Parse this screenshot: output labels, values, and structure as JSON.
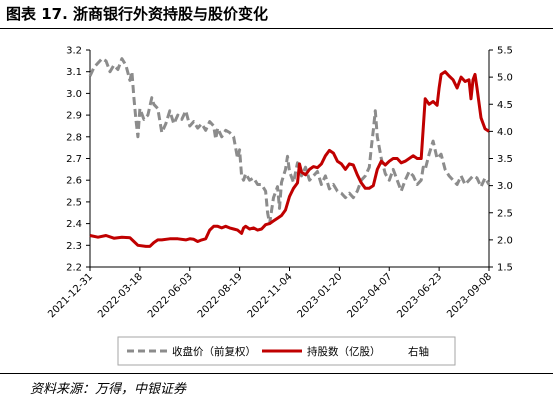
{
  "figure": {
    "title": "图表 17. 浙商银行外资持股与股价变化",
    "source": "资料来源：万得，中银证券"
  },
  "chart_data": {
    "type": "line",
    "x_tick_labels": [
      "2021-12-31",
      "2022-03-18",
      "2022-06-03",
      "2022-08-19",
      "2022-11-04",
      "2023-01-20",
      "2023-04-07",
      "2023-06-23",
      "2023-09-08"
    ],
    "left_axis": {
      "ylim": [
        2.2,
        3.2
      ],
      "ticks": [
        "2.2",
        "2.3",
        "2.4",
        "2.5",
        "2.6",
        "2.7",
        "2.8",
        "2.9",
        "3.0",
        "3.1",
        "3.2"
      ]
    },
    "right_axis": {
      "ylim": [
        1.5,
        5.5
      ],
      "ticks": [
        "1.5",
        "2.0",
        "2.5",
        "3.0",
        "3.5",
        "4.0",
        "4.5",
        "5.0",
        "5.5"
      ]
    },
    "grid": false,
    "legend_position": "bottom",
    "legend_note": "右轴",
    "colors": {
      "price": "#8c8c8c",
      "holdings": "#c00000"
    },
    "series": [
      {
        "name": "收盘价（前复权）",
        "axis": "left",
        "style": "dashed",
        "points": [
          [
            0,
            3.08
          ],
          [
            0.01,
            3.12
          ],
          [
            0.02,
            3.14
          ],
          [
            0.03,
            3.16
          ],
          [
            0.04,
            3.15
          ],
          [
            0.05,
            3.1
          ],
          [
            0.06,
            3.13
          ],
          [
            0.07,
            3.11
          ],
          [
            0.08,
            3.16
          ],
          [
            0.09,
            3.13
          ],
          [
            0.1,
            3.06
          ],
          [
            0.105,
            3.1
          ],
          [
            0.11,
            2.98
          ],
          [
            0.115,
            2.88
          ],
          [
            0.12,
            2.8
          ],
          [
            0.125,
            2.93
          ],
          [
            0.135,
            2.88
          ],
          [
            0.145,
            2.9
          ],
          [
            0.155,
            2.98
          ],
          [
            0.16,
            2.95
          ],
          [
            0.17,
            2.93
          ],
          [
            0.18,
            2.82
          ],
          [
            0.19,
            2.86
          ],
          [
            0.2,
            2.92
          ],
          [
            0.21,
            2.86
          ],
          [
            0.22,
            2.9
          ],
          [
            0.23,
            2.88
          ],
          [
            0.24,
            2.92
          ],
          [
            0.25,
            2.85
          ],
          [
            0.26,
            2.87
          ],
          [
            0.27,
            2.84
          ],
          [
            0.28,
            2.86
          ],
          [
            0.29,
            2.83
          ],
          [
            0.3,
            2.87
          ],
          [
            0.31,
            2.85
          ],
          [
            0.315,
            2.79
          ],
          [
            0.32,
            2.84
          ],
          [
            0.33,
            2.8
          ],
          [
            0.34,
            2.83
          ],
          [
            0.35,
            2.82
          ],
          [
            0.36,
            2.8
          ],
          [
            0.37,
            2.7
          ],
          [
            0.375,
            2.74
          ],
          [
            0.38,
            2.62
          ],
          [
            0.385,
            2.6
          ],
          [
            0.39,
            2.63
          ],
          [
            0.4,
            2.6
          ],
          [
            0.41,
            2.61
          ],
          [
            0.42,
            2.58
          ],
          [
            0.43,
            2.58
          ],
          [
            0.44,
            2.55
          ],
          [
            0.445,
            2.45
          ],
          [
            0.45,
            2.4
          ],
          [
            0.46,
            2.52
          ],
          [
            0.47,
            2.57
          ],
          [
            0.475,
            2.47
          ],
          [
            0.48,
            2.59
          ],
          [
            0.49,
            2.65
          ],
          [
            0.495,
            2.71
          ],
          [
            0.5,
            2.64
          ],
          [
            0.51,
            2.59
          ],
          [
            0.52,
            2.68
          ],
          [
            0.53,
            2.62
          ],
          [
            0.54,
            2.66
          ],
          [
            0.55,
            2.6
          ],
          [
            0.56,
            2.62
          ],
          [
            0.57,
            2.64
          ],
          [
            0.58,
            2.58
          ],
          [
            0.59,
            2.62
          ],
          [
            0.6,
            2.56
          ],
          [
            0.61,
            2.58
          ],
          [
            0.62,
            2.55
          ],
          [
            0.63,
            2.54
          ],
          [
            0.64,
            2.52
          ],
          [
            0.65,
            2.54
          ],
          [
            0.66,
            2.52
          ],
          [
            0.67,
            2.55
          ],
          [
            0.68,
            2.6
          ],
          [
            0.69,
            2.62
          ],
          [
            0.7,
            2.66
          ],
          [
            0.705,
            2.75
          ],
          [
            0.71,
            2.83
          ],
          [
            0.715,
            2.92
          ],
          [
            0.72,
            2.8
          ],
          [
            0.73,
            2.7
          ],
          [
            0.74,
            2.63
          ],
          [
            0.75,
            2.6
          ],
          [
            0.76,
            2.65
          ],
          [
            0.77,
            2.6
          ],
          [
            0.78,
            2.55
          ],
          [
            0.79,
            2.6
          ],
          [
            0.8,
            2.64
          ],
          [
            0.81,
            2.62
          ],
          [
            0.82,
            2.58
          ],
          [
            0.83,
            2.6
          ],
          [
            0.835,
            2.66
          ],
          [
            0.84,
            2.65
          ],
          [
            0.85,
            2.72
          ],
          [
            0.86,
            2.78
          ],
          [
            0.87,
            2.7
          ],
          [
            0.88,
            2.72
          ],
          [
            0.89,
            2.65
          ],
          [
            0.9,
            2.62
          ],
          [
            0.91,
            2.6
          ],
          [
            0.92,
            2.58
          ],
          [
            0.93,
            2.62
          ],
          [
            0.94,
            2.58
          ],
          [
            0.95,
            2.6
          ],
          [
            0.96,
            2.62
          ],
          [
            0.97,
            2.61
          ],
          [
            0.98,
            2.57
          ],
          [
            0.99,
            2.61
          ],
          [
            1.0,
            2.58
          ]
        ]
      },
      {
        "name": "持股数（亿股）",
        "axis": "right",
        "style": "solid",
        "points": [
          [
            0,
            2.08
          ],
          [
            0.02,
            2.05
          ],
          [
            0.04,
            2.08
          ],
          [
            0.06,
            2.03
          ],
          [
            0.08,
            2.05
          ],
          [
            0.1,
            2.04
          ],
          [
            0.11,
            1.97
          ],
          [
            0.12,
            1.9
          ],
          [
            0.14,
            1.88
          ],
          [
            0.15,
            1.88
          ],
          [
            0.16,
            1.95
          ],
          [
            0.17,
            2.0
          ],
          [
            0.18,
            2.0
          ],
          [
            0.2,
            2.02
          ],
          [
            0.22,
            2.02
          ],
          [
            0.24,
            2.0
          ],
          [
            0.25,
            2.02
          ],
          [
            0.26,
            2.01
          ],
          [
            0.27,
            1.97
          ],
          [
            0.28,
            2.0
          ],
          [
            0.29,
            2.02
          ],
          [
            0.3,
            2.18
          ],
          [
            0.31,
            2.25
          ],
          [
            0.32,
            2.25
          ],
          [
            0.33,
            2.22
          ],
          [
            0.34,
            2.25
          ],
          [
            0.35,
            2.22
          ],
          [
            0.36,
            2.2
          ],
          [
            0.37,
            2.18
          ],
          [
            0.38,
            2.12
          ],
          [
            0.385,
            2.22
          ],
          [
            0.39,
            2.25
          ],
          [
            0.4,
            2.2
          ],
          [
            0.41,
            2.22
          ],
          [
            0.42,
            2.18
          ],
          [
            0.43,
            2.2
          ],
          [
            0.44,
            2.28
          ],
          [
            0.45,
            2.3
          ],
          [
            0.46,
            2.35
          ],
          [
            0.47,
            2.4
          ],
          [
            0.48,
            2.45
          ],
          [
            0.49,
            2.55
          ],
          [
            0.5,
            2.8
          ],
          [
            0.51,
            2.95
          ],
          [
            0.52,
            3.05
          ],
          [
            0.525,
            3.4
          ],
          [
            0.53,
            3.25
          ],
          [
            0.54,
            3.2
          ],
          [
            0.55,
            3.3
          ],
          [
            0.56,
            3.35
          ],
          [
            0.57,
            3.33
          ],
          [
            0.58,
            3.4
          ],
          [
            0.59,
            3.55
          ],
          [
            0.6,
            3.65
          ],
          [
            0.61,
            3.6
          ],
          [
            0.62,
            3.45
          ],
          [
            0.63,
            3.4
          ],
          [
            0.64,
            3.3
          ],
          [
            0.65,
            3.4
          ],
          [
            0.66,
            3.38
          ],
          [
            0.67,
            3.2
          ],
          [
            0.68,
            3.05
          ],
          [
            0.69,
            2.95
          ],
          [
            0.7,
            2.95
          ],
          [
            0.71,
            3.0
          ],
          [
            0.72,
            3.3
          ],
          [
            0.73,
            3.45
          ],
          [
            0.74,
            3.38
          ],
          [
            0.75,
            3.45
          ],
          [
            0.76,
            3.5
          ],
          [
            0.77,
            3.5
          ],
          [
            0.78,
            3.42
          ],
          [
            0.79,
            3.45
          ],
          [
            0.8,
            3.5
          ],
          [
            0.81,
            3.55
          ],
          [
            0.82,
            3.5
          ],
          [
            0.83,
            3.5
          ],
          [
            0.84,
            4.6
          ],
          [
            0.85,
            4.5
          ],
          [
            0.86,
            4.55
          ],
          [
            0.87,
            4.48
          ],
          [
            0.875,
            4.8
          ],
          [
            0.88,
            5.05
          ],
          [
            0.89,
            5.1
          ],
          [
            0.9,
            5.02
          ],
          [
            0.91,
            4.95
          ],
          [
            0.92,
            4.8
          ],
          [
            0.93,
            5.0
          ],
          [
            0.94,
            4.92
          ],
          [
            0.95,
            4.95
          ],
          [
            0.955,
            4.6
          ],
          [
            0.96,
            4.95
          ],
          [
            0.965,
            5.05
          ],
          [
            0.97,
            4.8
          ],
          [
            0.98,
            4.25
          ],
          [
            0.99,
            4.05
          ],
          [
            1.0,
            4.0
          ]
        ]
      }
    ]
  }
}
